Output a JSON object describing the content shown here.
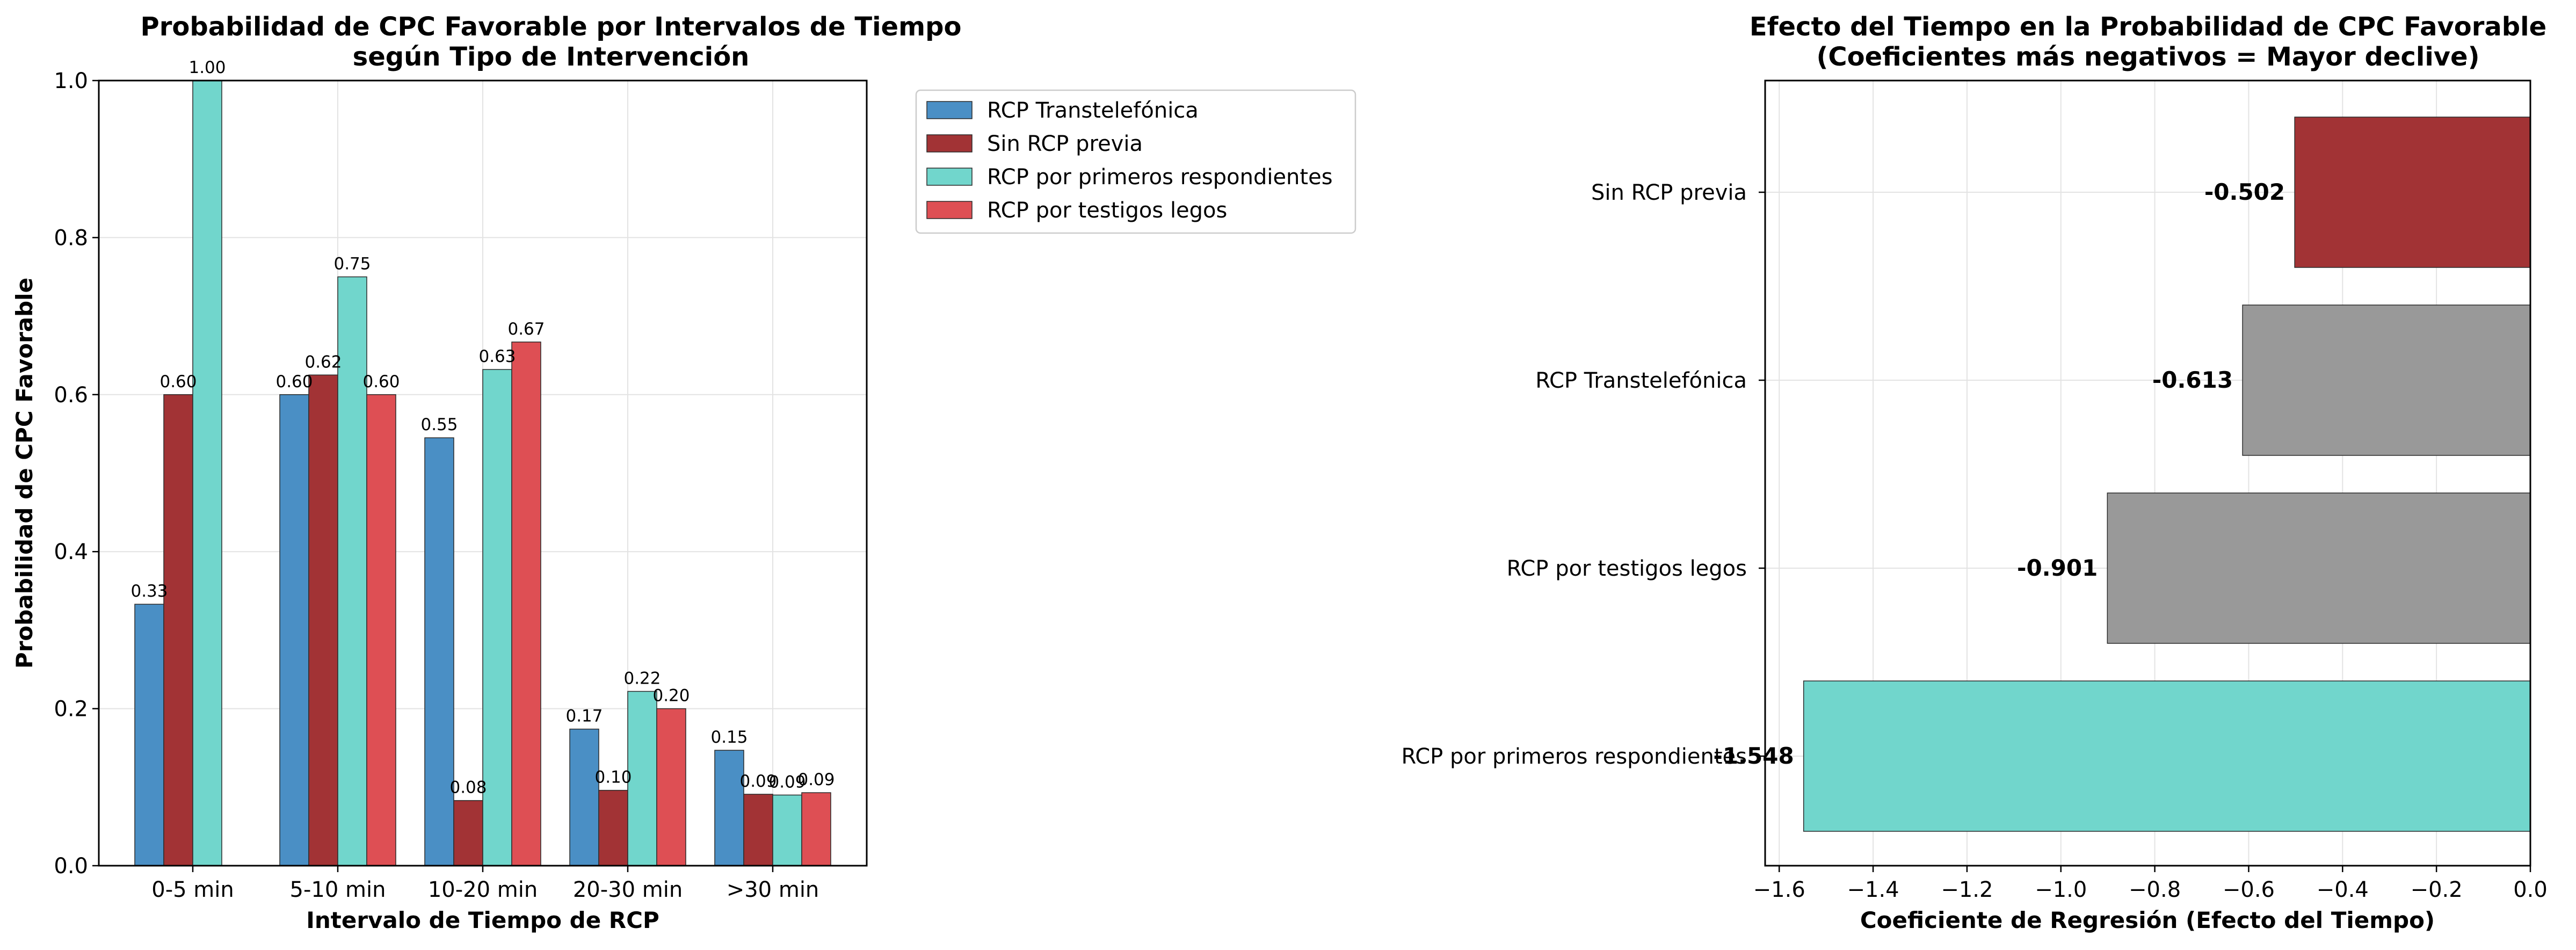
{
  "chart_data": [
    {
      "type": "bar",
      "title": "Probabilidad de CPC Favorable por Intervalos de Tiempo",
      "subtitle": "según Tipo de Intervención",
      "xlabel": "Intervalo de Tiempo de RCP",
      "ylabel": "Probabilidad de CPC Favorable",
      "ylim": [
        0,
        1.0
      ],
      "yticks": [
        "0.0",
        "0.2",
        "0.4",
        "0.6",
        "0.8",
        "1.0"
      ],
      "grid": true,
      "legend_position": "outside-top-right",
      "categories": [
        "0-5 min",
        "5-10 min",
        "10-20 min",
        "20-30 min",
        ">30 min"
      ],
      "series": [
        {
          "name": "RCP Transtelefónica",
          "color": "#4a8fc5",
          "values": [
            0.333,
            0.6,
            0.545,
            0.174,
            0.147
          ],
          "labels": [
            "0.33",
            "0.60",
            "0.55",
            "0.17",
            "0.15"
          ]
        },
        {
          "name": "Sin RCP previa",
          "color": "#a23335",
          "values": [
            0.6,
            0.625,
            0.083,
            0.096,
            0.091
          ],
          "labels": [
            "0.60",
            "0.62",
            "0.08",
            "0.10",
            "0.09"
          ]
        },
        {
          "name": "RCP por primeros respondientes",
          "color": "#71d6cc",
          "values": [
            1.0,
            0.75,
            0.632,
            0.222,
            0.09
          ],
          "labels": [
            "1.00",
            "0.75",
            "0.63",
            "0.22",
            "0.09"
          ]
        },
        {
          "name": "RCP por testigos legos",
          "color": "#de4f54",
          "values": [
            null,
            0.6,
            0.667,
            0.2,
            0.093
          ],
          "labels": [
            "",
            "0.60",
            "0.67",
            "0.20",
            "0.09"
          ]
        }
      ]
    },
    {
      "type": "bar",
      "orientation": "horizontal",
      "title": "Efecto del Tiempo en la Probabilidad de CPC Favorable",
      "subtitle": "(Coeficientes más negativos = Mayor declive)",
      "xlabel": "Coeficiente de Regresión (Efecto del Tiempo)",
      "ylabel": "",
      "xlim": [
        -1.63,
        0
      ],
      "xticks": [
        "−1.6",
        "−1.4",
        "−1.2",
        "−1.0",
        "−0.8",
        "−0.6",
        "−0.4",
        "−0.2",
        "0.0"
      ],
      "grid": true,
      "categories": [
        "Sin RCP previa",
        "RCP Transtelefónica",
        "RCP por testigos legos",
        "RCP por primeros respondientes"
      ],
      "values": [
        -0.502,
        -0.613,
        -0.901,
        -1.548
      ],
      "labels": [
        "-0.502",
        "-0.613",
        "-0.901",
        "-1.548"
      ],
      "colors": [
        "#a23335",
        "#999999",
        "#999999",
        "#71d6cc"
      ]
    }
  ]
}
